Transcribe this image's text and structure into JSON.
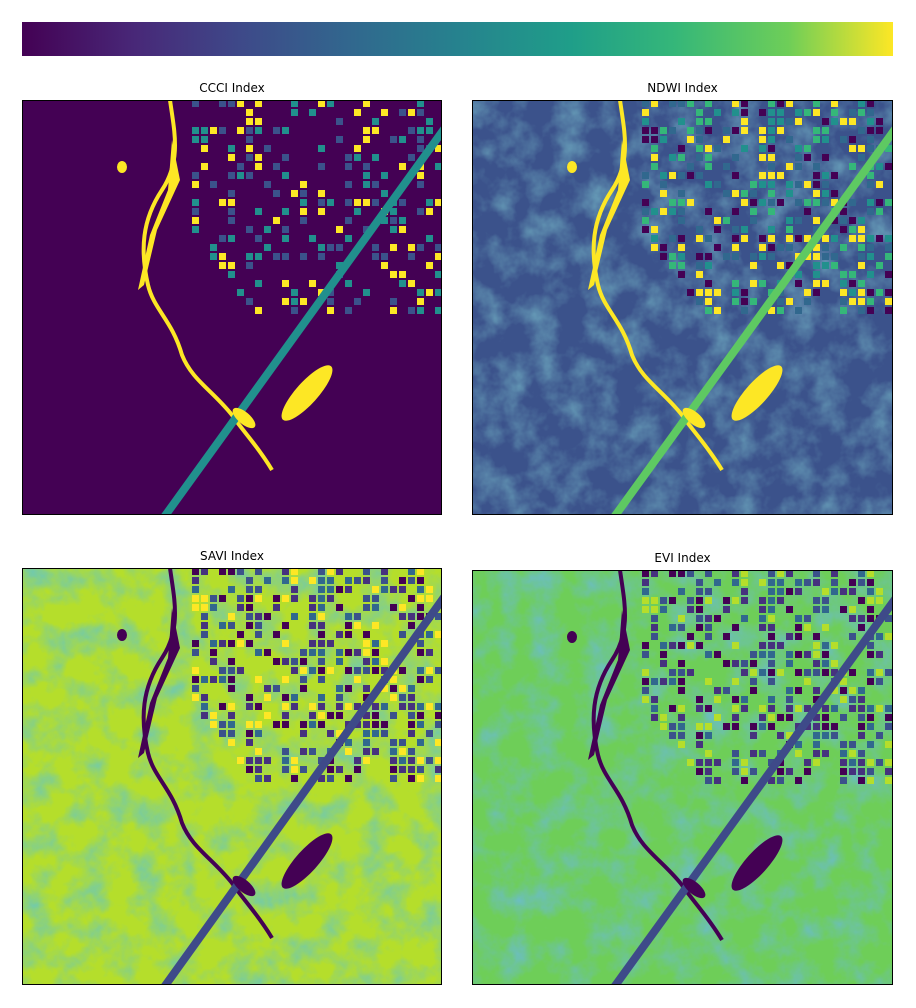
{
  "panels": [
    {
      "title": "CCCI Index"
    },
    {
      "title": "NDWI Index"
    },
    {
      "title": "SAVI Index"
    },
    {
      "title": "EVI Index"
    }
  ]
}
